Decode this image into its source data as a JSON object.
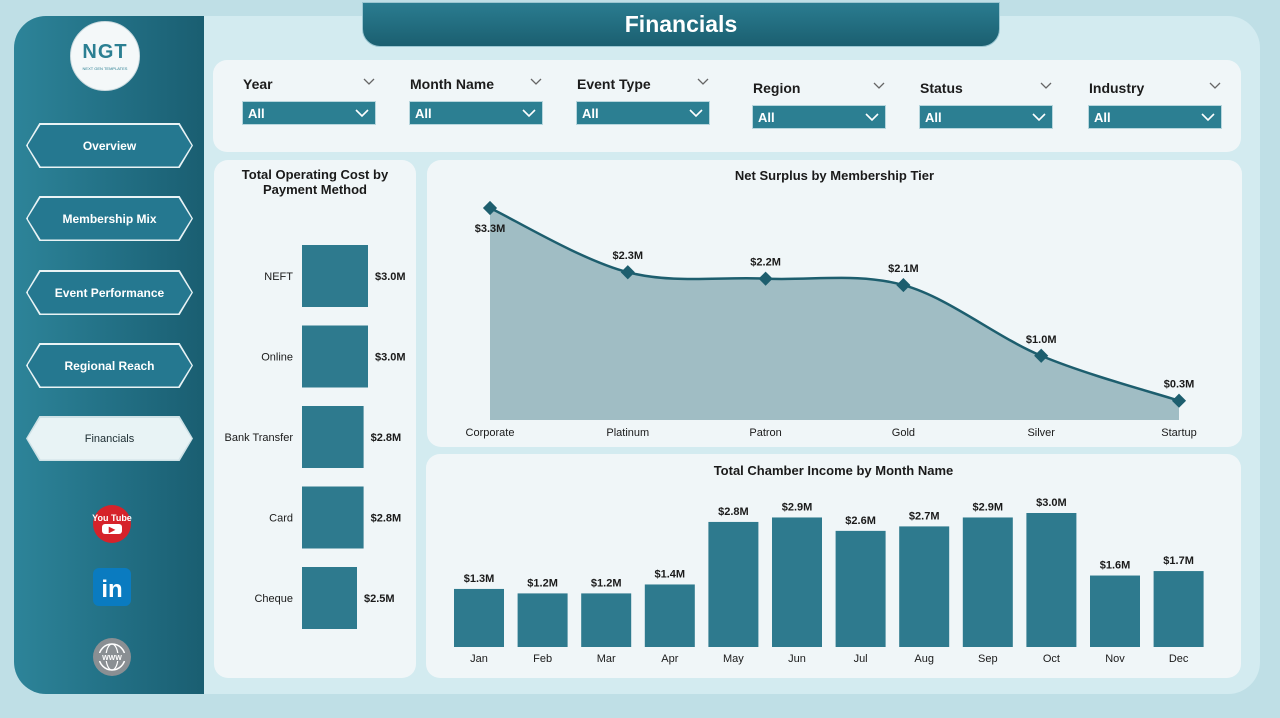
{
  "app": {
    "title": "Financials",
    "logo_text": "NGT",
    "logo_sub": "NEXT GEN TEMPLATES"
  },
  "nav": [
    {
      "label": "Overview",
      "active": false
    },
    {
      "label": "Membership Mix",
      "active": false
    },
    {
      "label": "Event Performance",
      "active": false
    },
    {
      "label": "Regional Reach",
      "active": false
    },
    {
      "label": "Financials",
      "active": true
    }
  ],
  "social": [
    {
      "icon": "youtube-icon",
      "text": "You Tube"
    },
    {
      "icon": "linkedin-icon",
      "text": "in"
    },
    {
      "icon": "globe-icon",
      "text": "WWW"
    }
  ],
  "filters": [
    {
      "label": "Year",
      "value": "All"
    },
    {
      "label": "Month Name",
      "value": "All"
    },
    {
      "label": "Event Type",
      "value": "All"
    },
    {
      "label": "Region",
      "value": "All"
    },
    {
      "label": "Status",
      "value": "All"
    },
    {
      "label": "Industry",
      "value": "All"
    }
  ],
  "colors": {
    "accent": "#2c7f92",
    "area_fill": "#9bb9c1",
    "line": "#1d5e6e",
    "bar": "#2e7a8e"
  },
  "chart_data": [
    {
      "type": "bar",
      "orientation": "horizontal",
      "title": "Total Operating Cost by Payment Method",
      "categories": [
        "NEFT",
        "Online",
        "Bank Transfer",
        "Card",
        "Cheque"
      ],
      "values": [
        3.0,
        3.0,
        2.8,
        2.8,
        2.5
      ],
      "labels": [
        "$3.0M",
        "$3.0M",
        "$2.8M",
        "$2.8M",
        "$2.5M"
      ],
      "unit": "$M"
    },
    {
      "type": "area",
      "title": "Net Surplus by Membership Tier",
      "categories": [
        "Corporate",
        "Platinum",
        "Patron",
        "Gold",
        "Silver",
        "Startup"
      ],
      "values": [
        3.3,
        2.3,
        2.2,
        2.1,
        1.0,
        0.3
      ],
      "labels": [
        "$3.3M",
        "$2.3M",
        "$2.2M",
        "$2.1M",
        "$1.0M",
        "$0.3M"
      ],
      "ylim": [
        0,
        3.3
      ],
      "unit": "$M"
    },
    {
      "type": "bar",
      "title": "Total Chamber Income by Month Name",
      "categories": [
        "Jan",
        "Feb",
        "Mar",
        "Apr",
        "May",
        "Jun",
        "Jul",
        "Aug",
        "Sep",
        "Oct",
        "Nov",
        "Dec"
      ],
      "values": [
        1.3,
        1.2,
        1.2,
        1.4,
        2.8,
        2.9,
        2.6,
        2.7,
        2.9,
        3.0,
        1.6,
        1.7
      ],
      "labels": [
        "$1.3M",
        "$1.2M",
        "$1.2M",
        "$1.4M",
        "$2.8M",
        "$2.9M",
        "$2.6M",
        "$2.7M",
        "$2.9M",
        "$3.0M",
        "$1.6M",
        "$1.7M"
      ],
      "ylim": [
        0,
        3.0
      ],
      "unit": "$M"
    }
  ]
}
